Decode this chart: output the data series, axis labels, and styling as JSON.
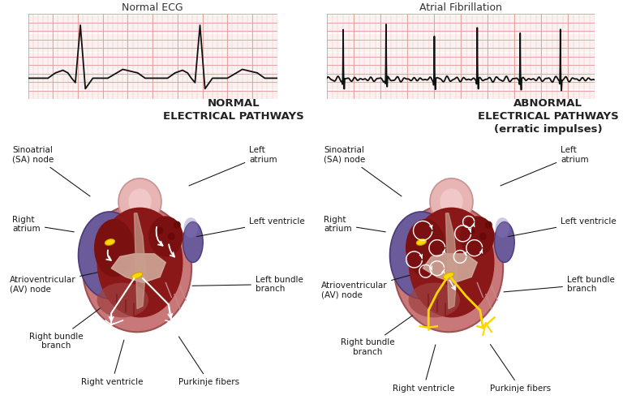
{
  "bg_color": "#ffffff",
  "ecg_bg": "#f5c0c0",
  "ecg_grid_major": "#e09090",
  "ecg_grid_minor": "#ebb0b0",
  "ecg_line_color": "#111111",
  "left_title": "Normal ECG",
  "right_title": "Atrial Fibrillation",
  "left_heart_title": "NORMAL\nELECTRICAL PATHWAYS",
  "right_heart_title": "ABNORMAL\nELECTRICAL PATHWAYS\n(erratic impulses)",
  "heart_outer_color": "#c97070",
  "heart_rim_color": "#d4948f",
  "ra_color": "#7060a8",
  "ra_dark": "#504080",
  "la_vessel_color": "#6655aa",
  "aorta_top_color": "#e8b0b0",
  "aorta_rim": "#c89090",
  "inner_dark": "#8B1a1a",
  "inner_mid": "#a03030",
  "septum_color": "#c88888",
  "valve_color": "#e0b0a0",
  "sa_node_color": "#FFD700",
  "av_node_color": "#FFD700",
  "purkinje_normal": "#ffffff",
  "purkinje_abnormal": "#FFD700",
  "label_fontsize": 7.5,
  "title_fontsize": 9,
  "label_color": "#1a1a1a"
}
